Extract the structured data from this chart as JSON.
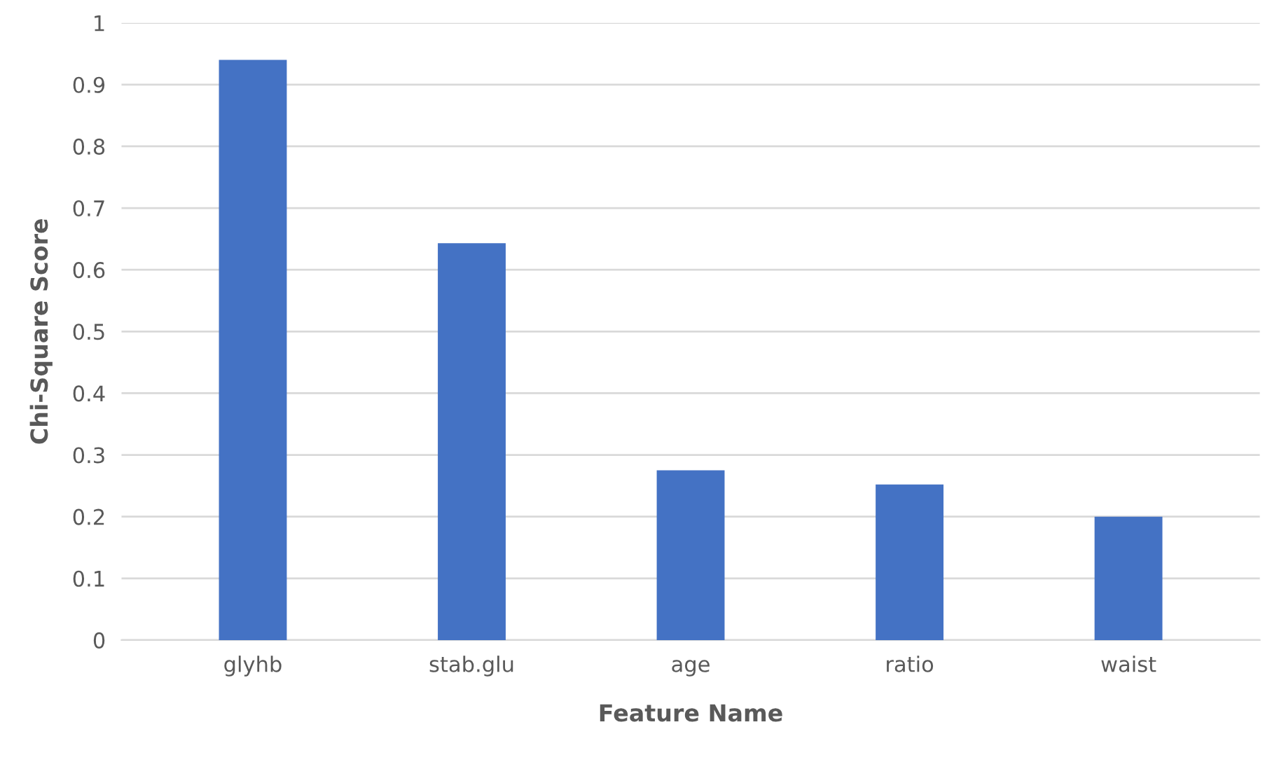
{
  "chart_data": {
    "type": "bar",
    "xlabel": "Feature Name",
    "ylabel": "Chi-Square Score",
    "categories": [
      "glyhb",
      "stab.glu",
      "age",
      "ratio",
      "waist"
    ],
    "values": [
      0.94,
      0.643,
      0.275,
      0.252,
      0.2
    ],
    "color": "#4472c4",
    "ylim": [
      0,
      1
    ],
    "yticks": [
      0,
      0.1,
      0.2,
      0.3,
      0.4,
      0.5,
      0.6,
      0.7,
      0.8,
      0.9,
      1
    ],
    "grid": "y"
  }
}
